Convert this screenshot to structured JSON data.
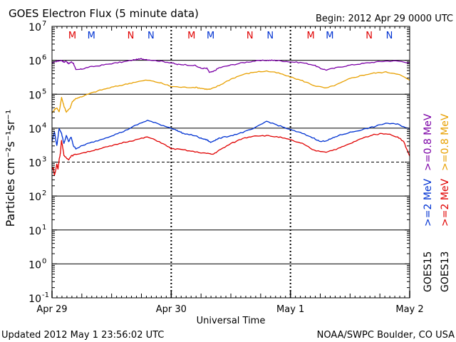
{
  "header": {
    "title": "GOES Electron Flux (5 minute data)",
    "begin": "Begin: 2012 Apr 29 0000 UTC"
  },
  "footer": {
    "updated": "Updated 2012 May  1 23:56:02 UTC",
    "credit": "NOAA/SWPC Boulder, CO USA"
  },
  "colors": {
    "goes15_08": "#7b00a6",
    "goes13_08": "#e8a000",
    "goes15_2": "#0032d2",
    "goes13_2": "#e00000",
    "marker_m": "#e00000",
    "marker_n": "#0032d2"
  },
  "chart_data": {
    "type": "line",
    "title": "GOES Electron Flux (5 minute data)",
    "xlabel": "Universal Time",
    "ylabel": "Particles cm⁻²s⁻¹sr⁻¹",
    "x_unit": "days since 2012 Apr 29 00:00 UTC",
    "xlim": [
      0,
      3
    ],
    "yscale": "log",
    "ylim_exp": [
      -1,
      7
    ],
    "x_ticks": [
      {
        "x": 0,
        "label": "Apr 29"
      },
      {
        "x": 1,
        "label": "Apr 30"
      },
      {
        "x": 2,
        "label": "May 1"
      },
      {
        "x": 3,
        "label": "May 2"
      }
    ],
    "y_tick_exps": [
      -1,
      0,
      1,
      2,
      3,
      4,
      5,
      6,
      7
    ],
    "y_tick_labels": [
      "10",
      "10",
      "10",
      "10",
      "10",
      "10",
      "10",
      "10",
      "10"
    ],
    "y_tick_sups": [
      "-1",
      "0",
      "1",
      "2",
      "3",
      "4",
      "5",
      "6",
      "7"
    ],
    "threshold_exp": 3,
    "sat_markers": [
      {
        "x": 0.17,
        "label": "M",
        "sat": "GOES13"
      },
      {
        "x": 0.33,
        "label": "M",
        "sat": "GOES15"
      },
      {
        "x": 0.66,
        "label": "N",
        "sat": "GOES13"
      },
      {
        "x": 0.83,
        "label": "N",
        "sat": "GOES15"
      },
      {
        "x": 1.17,
        "label": "M",
        "sat": "GOES13"
      },
      {
        "x": 1.33,
        "label": "M",
        "sat": "GOES15"
      },
      {
        "x": 1.66,
        "label": "N",
        "sat": "GOES13"
      },
      {
        "x": 1.83,
        "label": "N",
        "sat": "GOES15"
      },
      {
        "x": 2.17,
        "label": "M",
        "sat": "GOES13"
      },
      {
        "x": 2.33,
        "label": "M",
        "sat": "GOES15"
      },
      {
        "x": 2.66,
        "label": "N",
        "sat": "GOES13"
      },
      {
        "x": 2.83,
        "label": "N",
        "sat": "GOES15"
      }
    ],
    "series": [
      {
        "name": "GOES15 >=0.8 MeV",
        "sat": "GOES15",
        "energy": ">=0.8 MeV",
        "color": "#7b00a6",
        "x": [
          0,
          0.02,
          0.05,
          0.08,
          0.1,
          0.12,
          0.14,
          0.16,
          0.18,
          0.2,
          0.25,
          0.3,
          0.4,
          0.5,
          0.6,
          0.7,
          0.75,
          0.8,
          0.9,
          1.0,
          1.05,
          1.1,
          1.2,
          1.25,
          1.3,
          1.32,
          1.35,
          1.4,
          1.5,
          1.6,
          1.7,
          1.8,
          1.85,
          1.9,
          2.0,
          2.1,
          2.2,
          2.25,
          2.3,
          2.4,
          2.5,
          2.6,
          2.7,
          2.8,
          2.9,
          3.0
        ],
        "y": [
          850000,
          900000,
          950000,
          1000000,
          880000,
          950000,
          780000,
          900000,
          820000,
          520000,
          550000,
          620000,
          700000,
          800000,
          900000,
          1050000,
          1100000,
          1050000,
          950000,
          850000,
          750000,
          750000,
          700000,
          580000,
          580000,
          440000,
          460000,
          600000,
          720000,
          850000,
          950000,
          1000000,
          1000000,
          980000,
          900000,
          850000,
          720000,
          580000,
          520000,
          620000,
          720000,
          800000,
          880000,
          950000,
          950000,
          850000
        ]
      },
      {
        "name": "GOES13 >=0.8 MeV",
        "sat": "GOES13",
        "energy": ">=0.8 MeV",
        "color": "#e8a000",
        "x": [
          0,
          0.02,
          0.04,
          0.06,
          0.08,
          0.1,
          0.12,
          0.15,
          0.17,
          0.2,
          0.25,
          0.3,
          0.4,
          0.5,
          0.6,
          0.7,
          0.8,
          0.9,
          1.0,
          1.1,
          1.2,
          1.25,
          1.3,
          1.33,
          1.4,
          1.5,
          1.6,
          1.7,
          1.8,
          1.9,
          2.0,
          2.1,
          2.2,
          2.3,
          2.4,
          2.5,
          2.6,
          2.7,
          2.8,
          2.9,
          3.0
        ],
        "y": [
          28000,
          35000,
          40000,
          30000,
          80000,
          45000,
          30000,
          38000,
          60000,
          75000,
          85000,
          100000,
          130000,
          160000,
          190000,
          230000,
          260000,
          220000,
          170000,
          160000,
          160000,
          150000,
          140000,
          140000,
          180000,
          280000,
          380000,
          450000,
          480000,
          420000,
          320000,
          250000,
          180000,
          150000,
          200000,
          290000,
          360000,
          420000,
          450000,
          400000,
          260000
        ]
      },
      {
        "name": "GOES15 >=2 MeV",
        "sat": "GOES15",
        "energy": ">=2 MeV",
        "color": "#0032d2",
        "x": [
          0,
          0.02,
          0.04,
          0.06,
          0.08,
          0.1,
          0.12,
          0.14,
          0.16,
          0.18,
          0.2,
          0.25,
          0.3,
          0.4,
          0.5,
          0.6,
          0.7,
          0.8,
          0.9,
          1.0,
          1.05,
          1.1,
          1.2,
          1.25,
          1.3,
          1.33,
          1.37,
          1.4,
          1.5,
          1.6,
          1.7,
          1.8,
          1.9,
          2.0,
          2.1,
          2.2,
          2.25,
          2.3,
          2.35,
          2.4,
          2.5,
          2.6,
          2.7,
          2.8,
          2.9,
          3.0
        ],
        "y": [
          4000,
          8000,
          3000,
          10000,
          7000,
          3500,
          6000,
          4000,
          5500,
          3000,
          2500,
          3000,
          3500,
          4500,
          6000,
          8000,
          12000,
          17000,
          13000,
          10000,
          8500,
          7000,
          6000,
          5000,
          4500,
          3800,
          4500,
          5000,
          6000,
          7500,
          10000,
          16000,
          12000,
          9000,
          7000,
          5000,
          4000,
          4300,
          5000,
          6000,
          7500,
          9000,
          11000,
          14000,
          13000,
          9500
        ]
      },
      {
        "name": "GOES13 >=2 MeV",
        "sat": "GOES13",
        "energy": ">=2 MeV",
        "color": "#e00000",
        "x": [
          0,
          0.01,
          0.02,
          0.03,
          0.04,
          0.05,
          0.06,
          0.07,
          0.08,
          0.1,
          0.12,
          0.14,
          0.16,
          0.2,
          0.3,
          0.4,
          0.5,
          0.6,
          0.7,
          0.8,
          0.9,
          1.0,
          1.1,
          1.2,
          1.3,
          1.35,
          1.4,
          1.5,
          1.6,
          1.7,
          1.8,
          1.9,
          2.0,
          2.1,
          2.2,
          2.3,
          2.4,
          2.5,
          2.6,
          2.7,
          2.8,
          2.9,
          2.95,
          3.0
        ],
        "y": [
          600,
          700,
          400,
          550,
          900,
          600,
          1200,
          1800,
          4500,
          1600,
          1300,
          1200,
          1500,
          1700,
          2000,
          2500,
          3000,
          3800,
          4500,
          5500,
          4000,
          2500,
          2300,
          2000,
          1800,
          1700,
          2200,
          3500,
          5000,
          6000,
          6000,
          5500,
          4500,
          3500,
          2200,
          2000,
          2500,
          3500,
          5000,
          6500,
          7000,
          5500,
          4000,
          1500
        ]
      }
    ],
    "legend": [
      {
        "sat_label": "GOES15",
        "energy_label": ">=0.8 MeV",
        "color": "#7b00a6"
      },
      {
        "sat_label": "GOES13",
        "energy_label": ">=0.8 MeV",
        "color": "#e8a000"
      },
      {
        "sat_label": "GOES15",
        "energy_label": ">=2 MeV",
        "color": "#0032d2"
      },
      {
        "sat_label": "GOES13",
        "energy_label": ">=2 MeV",
        "color": "#e00000"
      }
    ]
  }
}
